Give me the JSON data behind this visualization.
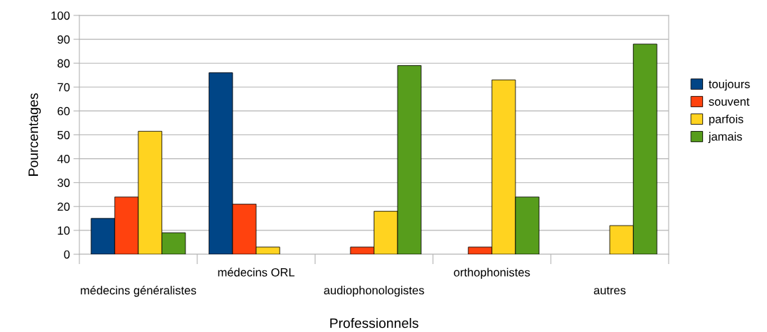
{
  "chart_data": {
    "type": "bar",
    "xlabel": "Professionnels",
    "ylabel": "Pourcentages",
    "categories": [
      "médecins généralistes",
      "médecins ORL",
      "audiophonologistes",
      "orthophonistes",
      "autres"
    ],
    "series": [
      {
        "name": "toujours",
        "color": "#004586",
        "values": [
          15,
          76,
          null,
          null,
          null
        ]
      },
      {
        "name": "souvent",
        "color": "#ff420e",
        "values": [
          24,
          21,
          3,
          3,
          null
        ]
      },
      {
        "name": "parfois",
        "color": "#ffd320",
        "values": [
          51.5,
          3,
          18,
          73,
          12
        ]
      },
      {
        "name": "jamais",
        "color": "#579d1c",
        "values": [
          9,
          null,
          79,
          24,
          88
        ]
      }
    ],
    "ylim": [
      0,
      100
    ],
    "yticks": [
      0,
      10,
      20,
      30,
      40,
      50,
      60,
      70,
      80,
      90,
      100
    ],
    "grid": "y",
    "legend": "right"
  }
}
